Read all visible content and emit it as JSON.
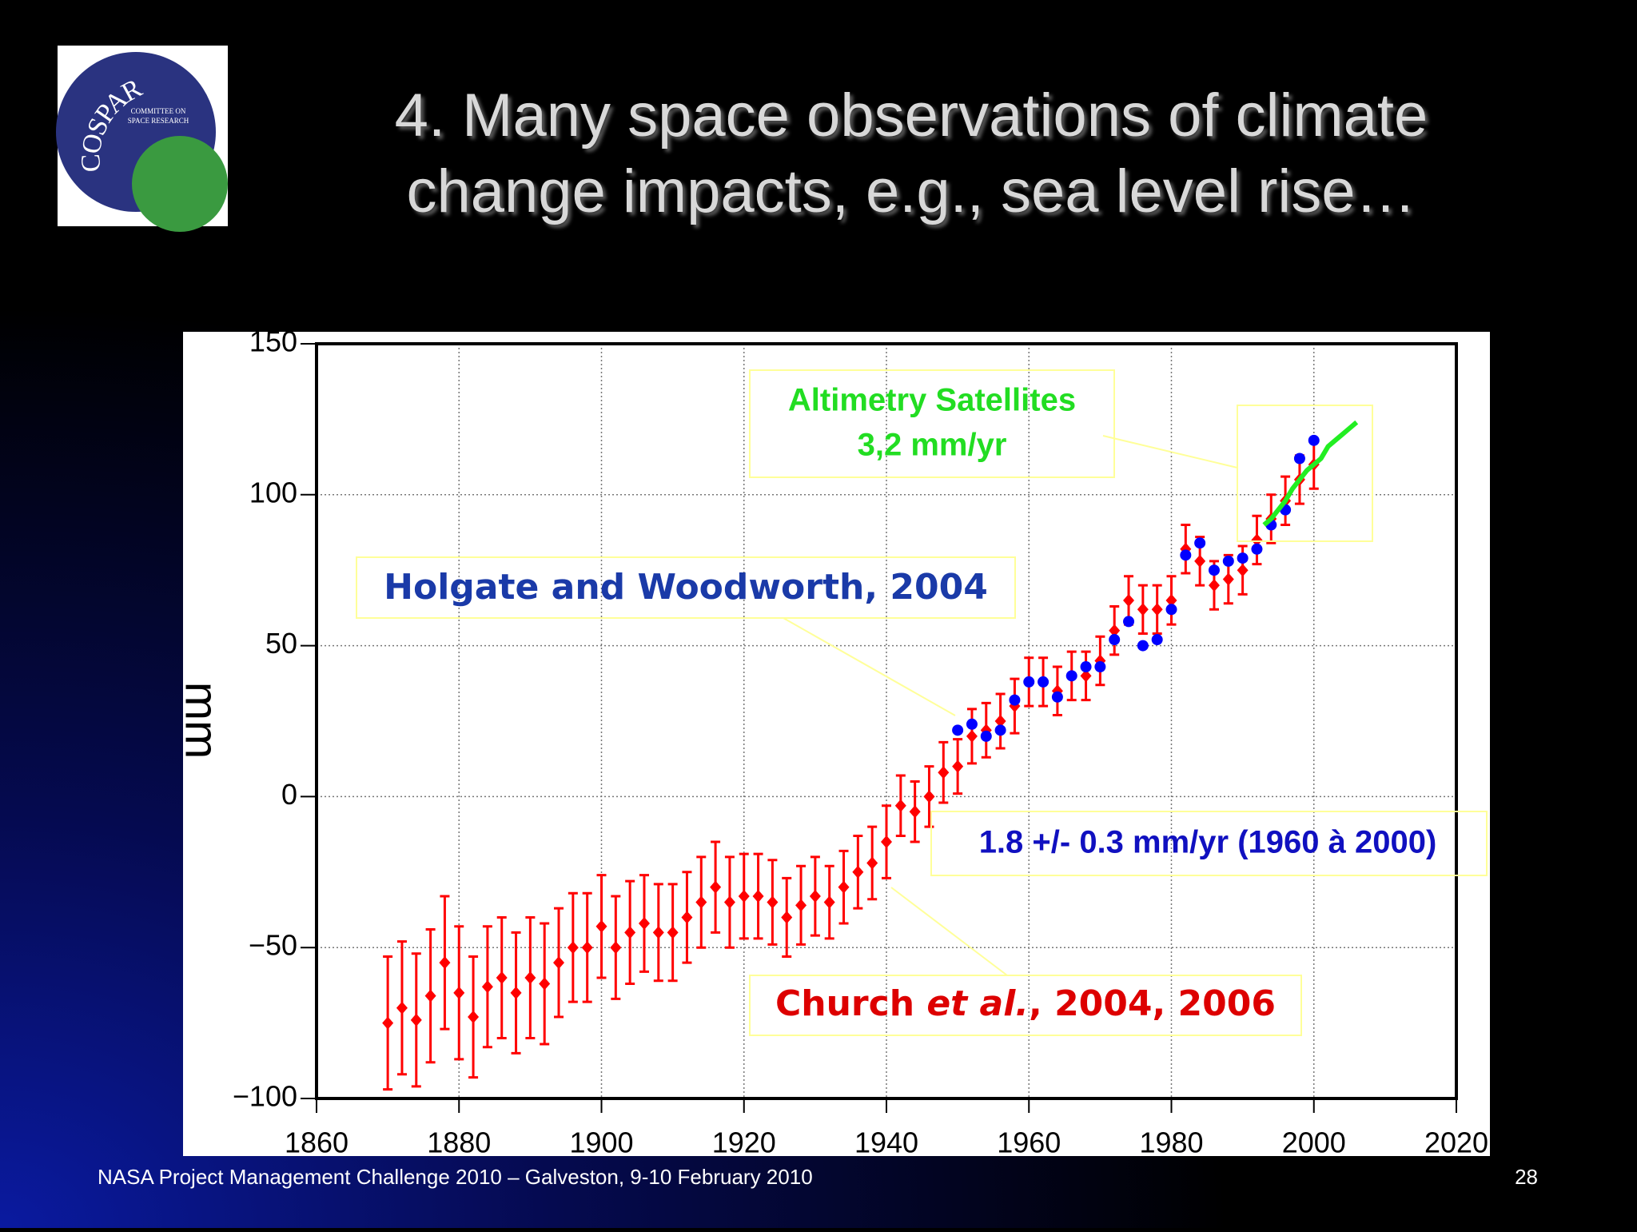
{
  "title": [
    "4. Many space observations of climate",
    "change impacts, e.g., sea level rise…"
  ],
  "footer": "NASA Project Management Challenge 2010 – Galveston, 9-10 February 2010",
  "page_number": "28",
  "logo": {
    "name": "COSPAR",
    "subtitle": [
      "COMMITTEE ON",
      "SPACE RESEARCH"
    ]
  },
  "chart_data": {
    "type": "scatter",
    "ylabel": "mm",
    "xlim": [
      1860,
      2020
    ],
    "ylim": [
      -100,
      150
    ],
    "xticks": [
      1860,
      1880,
      1900,
      1920,
      1940,
      1960,
      1980,
      2000,
      2020
    ],
    "yticks": [
      {
        "value": -100,
        "label": "−100"
      },
      {
        "value": -50,
        "label": "−50"
      },
      0,
      50,
      100,
      150
    ],
    "grid": true,
    "annotations": {
      "altimetry": [
        "Altimetry Satellites",
        "3,2 mm/yr"
      ],
      "holgate": "Holgate and Woodworth, 2004",
      "rate": "1.8 +/- 0.3 mm/yr (1960 à 2000)",
      "church": [
        "Church",
        "et al.",
        ", 2004, 2006"
      ]
    },
    "series": [
      {
        "color": "#ff0000",
        "marker": "diamond",
        "x": [
          1870,
          1872,
          1874,
          1876,
          1878,
          1880,
          1882,
          1884,
          1886,
          1888,
          1890,
          1892,
          1894,
          1896,
          1898,
          1900,
          1902,
          1904,
          1906,
          1908,
          1910,
          1912,
          1914,
          1916,
          1918,
          1920,
          1922,
          1924,
          1926,
          1928,
          1930,
          1932,
          1934,
          1936,
          1938,
          1940,
          1942,
          1944,
          1946,
          1948,
          1950,
          1952,
          1954,
          1956,
          1958,
          1960,
          1962,
          1964,
          1966,
          1968,
          1970,
          1972,
          1974,
          1976,
          1978,
          1980,
          1982,
          1984,
          1986,
          1988,
          1990,
          1992,
          1994,
          1996,
          1998,
          2000
        ],
        "values": [
          -75,
          -70,
          -74,
          -66,
          -55,
          -65,
          -73,
          -63,
          -60,
          -65,
          -60,
          -62,
          -55,
          -50,
          -50,
          -43,
          -50,
          -45,
          -42,
          -45,
          -45,
          -40,
          -35,
          -30,
          -35,
          -33,
          -33,
          -35,
          -40,
          -36,
          -33,
          -35,
          -30,
          -25,
          -22,
          -15,
          -3,
          -5,
          0,
          8,
          10,
          20,
          22,
          25,
          30,
          38,
          38,
          35,
          40,
          40,
          45,
          55,
          65,
          62,
          62,
          65,
          82,
          78,
          70,
          72,
          75,
          85,
          92,
          98,
          105,
          110
        ],
        "errors": [
          22,
          22,
          22,
          22,
          22,
          22,
          20,
          20,
          20,
          20,
          20,
          20,
          18,
          18,
          18,
          17,
          17,
          17,
          16,
          16,
          16,
          15,
          15,
          15,
          15,
          14,
          14,
          14,
          13,
          13,
          13,
          12,
          12,
          12,
          12,
          12,
          10,
          10,
          10,
          10,
          9,
          9,
          9,
          9,
          9,
          8,
          8,
          8,
          8,
          8,
          8,
          8,
          8,
          8,
          8,
          8,
          8,
          8,
          8,
          8,
          8,
          8,
          8,
          8,
          8,
          8
        ]
      },
      {
        "color": "#0000ff",
        "marker": "circle",
        "x": [
          1950,
          1952,
          1954,
          1956,
          1958,
          1960,
          1962,
          1964,
          1966,
          1968,
          1970,
          1972,
          1974,
          1976,
          1978,
          1980,
          1982,
          1984,
          1986,
          1988,
          1990,
          1992,
          1994,
          1996,
          1998,
          2000
        ],
        "values": [
          22,
          24,
          20,
          22,
          32,
          38,
          38,
          33,
          40,
          43,
          43,
          52,
          58,
          50,
          52,
          62,
          80,
          84,
          75,
          78,
          79,
          82,
          90,
          95,
          112,
          118
        ]
      },
      {
        "color": "#22ee22",
        "marker": "line",
        "x": [
          1993,
          1994,
          1995,
          1996,
          1997,
          1998,
          1999,
          2000,
          2001,
          2002,
          2003,
          2004,
          2005,
          2006
        ],
        "values": [
          90,
          92,
          95,
          98,
          102,
          105,
          108,
          110,
          112,
          116,
          118,
          120,
          122,
          124
        ]
      }
    ]
  }
}
